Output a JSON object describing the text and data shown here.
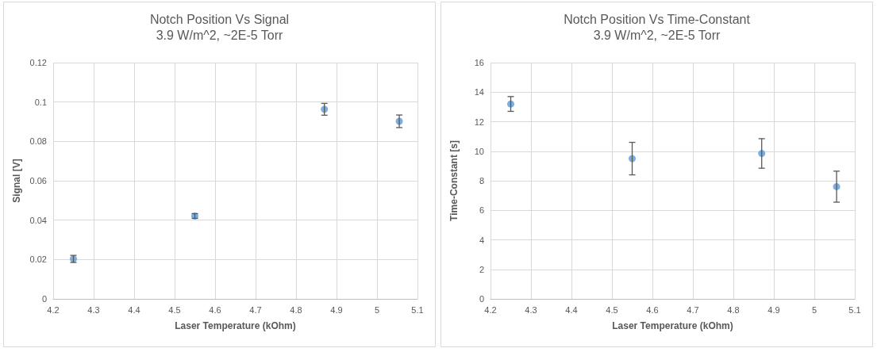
{
  "chart_data": [
    {
      "type": "scatter",
      "title": "Notch Position Vs Signal",
      "subtitle": "3.9 W/m^2, ~2E-5 Torr",
      "xlabel": "Laser Temperature (kOhm)",
      "ylabel": "Signal [V]",
      "x": [
        4.25,
        4.55,
        4.87,
        5.055
      ],
      "series": [
        {
          "color": "#5b9bd5",
          "values": [
            0.0203,
            0.0421,
            0.0963,
            0.0902
          ],
          "errors": [
            0.0018,
            0.0012,
            0.003,
            0.0032
          ]
        }
      ],
      "xlim": [
        4.2,
        5.1
      ],
      "xticks": [
        4.2,
        4.3,
        4.4,
        4.5,
        4.6,
        4.7,
        4.8,
        4.9,
        5,
        5.1
      ],
      "ylim": [
        0,
        0.12
      ],
      "yticks": [
        0,
        0.02,
        0.04,
        0.06,
        0.08,
        0.1,
        0.12
      ],
      "grid": true,
      "marker": "circle"
    },
    {
      "type": "scatter",
      "title": "Notch Position Vs Time-Constant",
      "subtitle": "3.9 W/m^2, ~2E-5 Torr",
      "xlabel": "Laser Temperature (kOhm)",
      "ylabel": "Time-Constant [s]",
      "x": [
        4.25,
        4.55,
        4.87,
        5.055
      ],
      "series": [
        {
          "color": "#5b9bd5",
          "values": [
            13.2,
            9.5,
            9.85,
            7.6
          ],
          "errors": [
            0.5,
            1.1,
            1.0,
            1.05
          ]
        }
      ],
      "xlim": [
        4.2,
        5.1
      ],
      "xticks": [
        4.2,
        4.3,
        4.4,
        4.5,
        4.6,
        4.7,
        4.8,
        4.9,
        5,
        5.1
      ],
      "ylim": [
        0,
        16
      ],
      "yticks": [
        0,
        2,
        4,
        6,
        8,
        10,
        12,
        14,
        16
      ],
      "grid": true,
      "marker": "circle"
    }
  ]
}
